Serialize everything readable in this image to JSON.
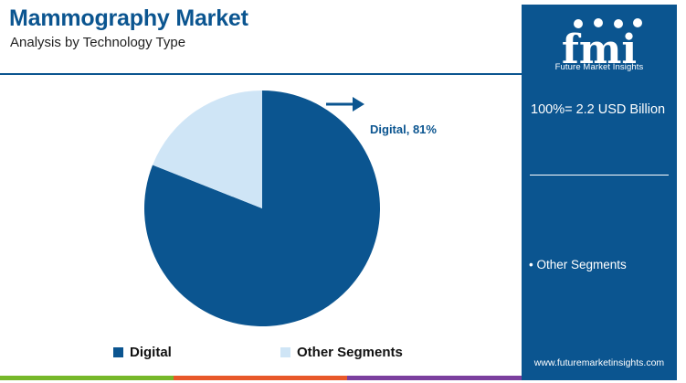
{
  "header": {
    "title": "Mammography Market",
    "subtitle": "Analysis by Technology Type"
  },
  "chart_data": {
    "type": "pie",
    "categories": [
      "Digital",
      "Other Segments"
    ],
    "values": [
      81,
      19
    ],
    "data_labels": {
      "Digital": "Digital, 81%"
    },
    "legend": {
      "placement": "bottom",
      "entries": [
        "Digital",
        "Other Segments"
      ]
    },
    "colors": [
      "#0b5590",
      "#cfe5f6"
    ]
  },
  "sidebar": {
    "logo_letters": "fmi",
    "logo_caption": "Future Market Insights",
    "total": "100%= 2.2 USD Billion",
    "segment_item": "• Other Segments",
    "website": "www.futuremarketinsights.com",
    "background": "#0b5590"
  },
  "stripe_colors": [
    "#76b82a",
    "#e8582a",
    "#7b3f9e",
    "#0b5590"
  ]
}
